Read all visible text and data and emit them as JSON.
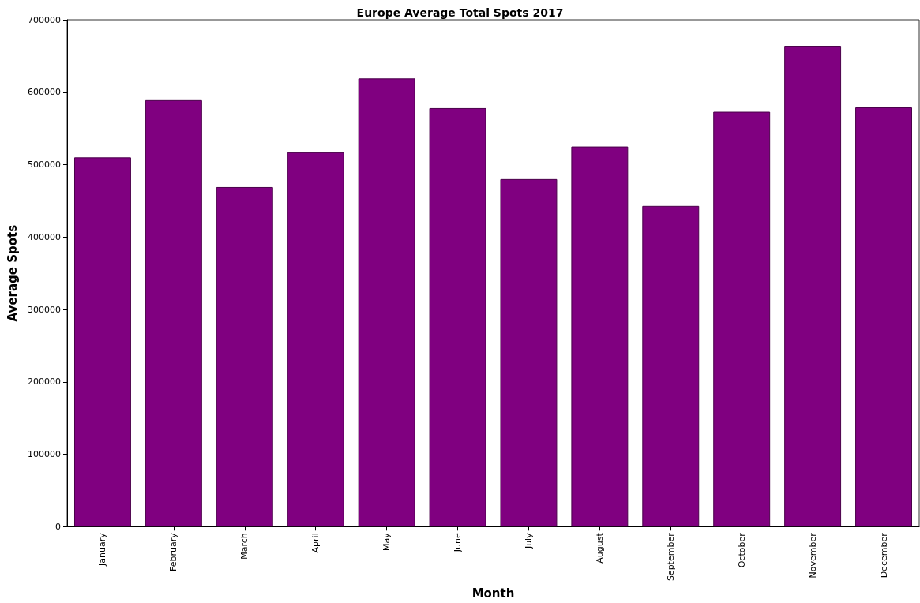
{
  "chart_data": {
    "type": "bar",
    "title": "Europe Average Total Spots 2017",
    "xlabel": "Month",
    "ylabel": "Average Spots",
    "categories": [
      "January",
      "February",
      "March",
      "April",
      "May",
      "June",
      "July",
      "August",
      "September",
      "October",
      "November",
      "December"
    ],
    "values": [
      510000,
      589000,
      469000,
      517000,
      619000,
      578000,
      480000,
      525000,
      443000,
      573000,
      664000,
      579000
    ],
    "color": "#800080",
    "ylim": [
      0,
      700000
    ],
    "yticks": [
      0,
      100000,
      200000,
      300000,
      400000,
      500000,
      600000,
      700000
    ],
    "grid": false
  }
}
